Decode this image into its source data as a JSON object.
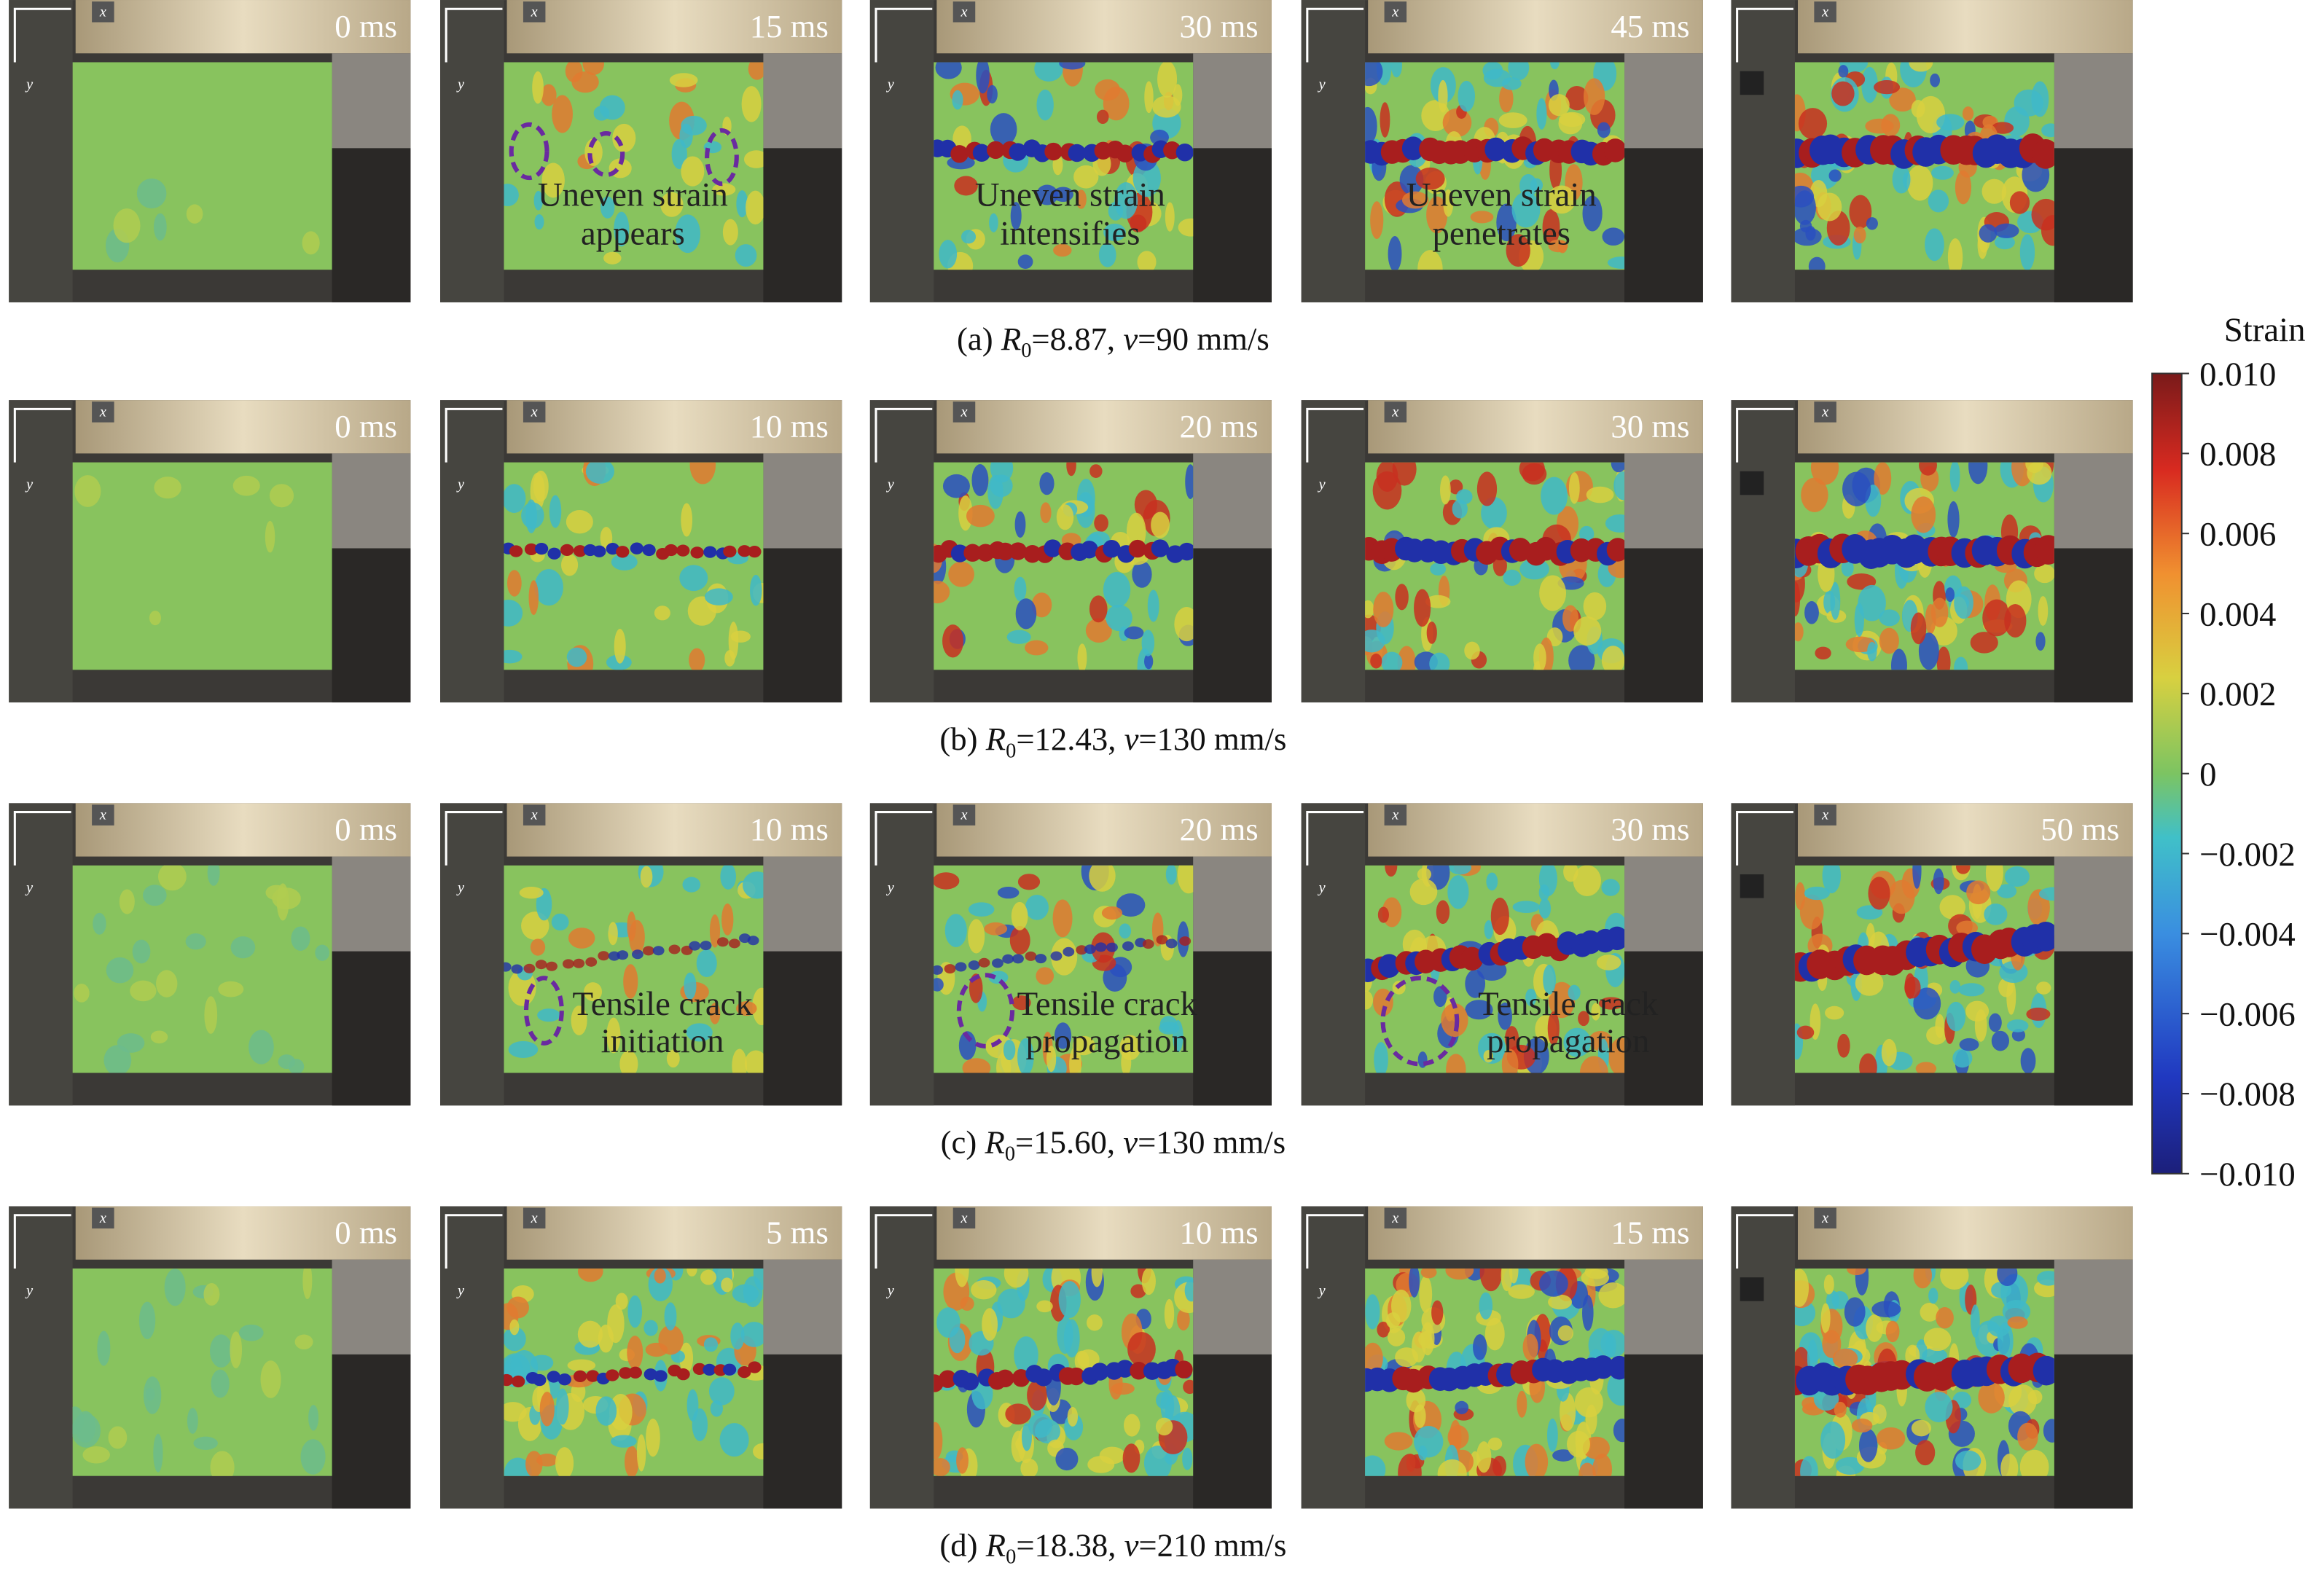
{
  "axis_labels": {
    "x": "x",
    "y": "y"
  },
  "rows": [
    {
      "caption": [
        "(a) ",
        "R",
        "0",
        "=8.87, ",
        "v",
        "=90 mm/s"
      ],
      "panels": [
        {
          "time": "0 ms"
        },
        {
          "time": "15 ms",
          "annotation": [
            "Uneven strain",
            "appears"
          ]
        },
        {
          "time": "30 ms",
          "annotation": [
            "Uneven strain",
            "intensifies"
          ]
        },
        {
          "time": "45 ms",
          "annotation": [
            "Uneven strain",
            "penetrates"
          ]
        },
        {}
      ]
    },
    {
      "caption": [
        "(b) ",
        "R",
        "0",
        "=12.43, ",
        "v",
        "=130 mm/s"
      ],
      "panels": [
        {
          "time": "0 ms"
        },
        {
          "time": "10 ms"
        },
        {
          "time": "20 ms"
        },
        {
          "time": "30 ms"
        },
        {}
      ]
    },
    {
      "caption": [
        "(c) ",
        "R",
        "0",
        "=15.60, ",
        "v",
        "=130 mm/s"
      ],
      "panels": [
        {
          "time": "0 ms"
        },
        {
          "time": "10 ms",
          "annotation": [
            "Tensile crack",
            "initiation"
          ]
        },
        {
          "time": "20 ms",
          "annotation": [
            "Tensile crack",
            "propagation"
          ]
        },
        {
          "time": "30 ms",
          "annotation": [
            "Tensile crack",
            "propagation"
          ]
        },
        {
          "time": "50 ms"
        }
      ]
    },
    {
      "caption": [
        "(d) ",
        "R",
        "0",
        "=18.38, ",
        "v",
        "=210 mm/s"
      ],
      "panels": [
        {
          "time": "0 ms"
        },
        {
          "time": "5 ms"
        },
        {
          "time": "10 ms"
        },
        {
          "time": "15 ms"
        },
        {}
      ]
    }
  ],
  "colorbar": {
    "title": "Strain",
    "ylim": [
      -0.01,
      0.01
    ],
    "yticks": [
      {
        "value": 0.01,
        "label": "0.010"
      },
      {
        "value": 0.008,
        "label": "0.008"
      },
      {
        "value": 0.006,
        "label": "0.006"
      },
      {
        "value": 0.004,
        "label": "0.004"
      },
      {
        "value": 0.002,
        "label": "0.002"
      },
      0,
      {
        "value": -0.002,
        "label": "−0.002"
      },
      {
        "value": -0.004,
        "label": "−0.004"
      },
      {
        "value": -0.006,
        "label": "−0.006"
      },
      {
        "value": -0.008,
        "label": "−0.008"
      },
      {
        "value": -0.01,
        "label": "−0.010"
      }
    ]
  }
}
